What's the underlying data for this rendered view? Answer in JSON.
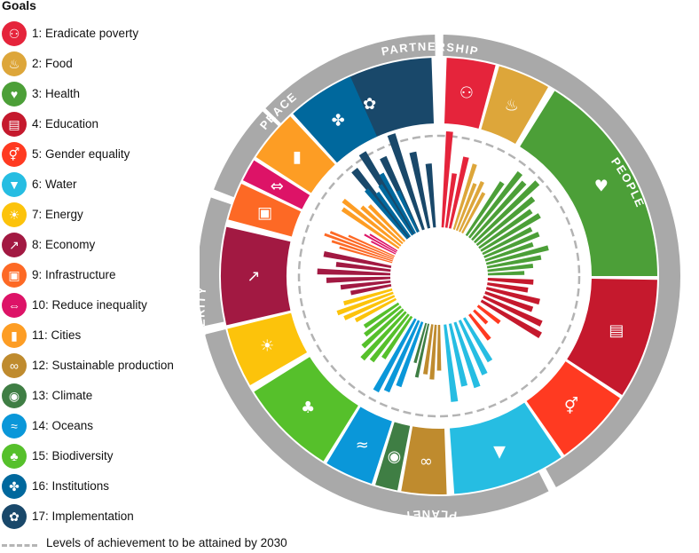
{
  "legend": {
    "title": "Goals",
    "items": [
      {
        "label": "1: Eradicate poverty",
        "color": "#E5243B",
        "icon": "people-icon"
      },
      {
        "label": "2: Food",
        "color": "#DDA63A",
        "icon": "bowl-icon"
      },
      {
        "label": "3: Health",
        "color": "#4C9F38",
        "icon": "heartbeat-icon"
      },
      {
        "label": "4: Education",
        "color": "#C5192D",
        "icon": "book-icon"
      },
      {
        "label": "5: Gender equality",
        "color": "#FF3A21",
        "icon": "gender-icon"
      },
      {
        "label": "6: Water",
        "color": "#26BDE2",
        "icon": "water-icon"
      },
      {
        "label": "7: Energy",
        "color": "#FCC30B",
        "icon": "sun-icon"
      },
      {
        "label": "8: Economy",
        "color": "#A21942",
        "icon": "growth-icon"
      },
      {
        "label": "9: Infrastructure",
        "color": "#FD6925",
        "icon": "cubes-icon"
      },
      {
        "label": "10: Reduce inequality",
        "color": "#DD1367",
        "icon": "arrows-icon"
      },
      {
        "label": "11: Cities",
        "color": "#FD9D24",
        "icon": "buildings-icon"
      },
      {
        "label": "12: Sustainable production",
        "color": "#BF8B2E",
        "icon": "infinity-icon"
      },
      {
        "label": "13: Climate",
        "color": "#3F7E44",
        "icon": "eye-icon"
      },
      {
        "label": "14: Oceans",
        "color": "#0A97D9",
        "icon": "fish-icon"
      },
      {
        "label": "15: Biodiversity",
        "color": "#56C02B",
        "icon": "tree-icon"
      },
      {
        "label": "16: Institutions",
        "color": "#00689D",
        "icon": "dove-icon"
      },
      {
        "label": "17: Implementation",
        "color": "#19486A",
        "icon": "rings-icon"
      }
    ],
    "achievement_label": "Levels of achievement to be attained by 2030"
  },
  "wheel": {
    "groups": [
      {
        "label": "PARTNERSHIP"
      },
      {
        "label": "PEOPLE"
      },
      {
        "label": "PLANET"
      },
      {
        "label": "PROSPERITY"
      },
      {
        "label": "PEACE"
      }
    ]
  },
  "chart_data": {
    "type": "bar",
    "layout": "radial",
    "target_level": 1.0,
    "series": [
      {
        "goal": 17,
        "values": [
          0.95,
          1.05,
          0.9,
          1.1,
          0.85,
          0.7
        ]
      },
      {
        "goal": 1,
        "values": [
          1.05,
          0.6,
          0.8
        ]
      },
      {
        "goal": 2,
        "values": [
          0.75,
          0.55,
          0.6,
          0.5
        ]
      },
      {
        "goal": 3,
        "values": [
          0.7,
          0.9,
          0.85,
          0.95,
          0.8,
          0.7,
          0.75,
          0.6,
          0.65,
          0.55,
          0.7,
          0.6,
          0.5,
          0.4
        ]
      },
      {
        "goal": 4,
        "values": [
          0.5,
          0.45,
          0.6,
          0.55,
          0.7,
          0.75
        ]
      },
      {
        "goal": 5,
        "values": [
          0.3,
          0.2,
          0.35
        ]
      },
      {
        "goal": 6,
        "values": [
          0.55,
          0.65,
          0.75,
          0.7,
          0.85
        ]
      },
      {
        "goal": 12,
        "values": [
          0.5,
          0.6,
          0.55
        ]
      },
      {
        "goal": 13,
        "values": [
          0.6,
          0.45
        ]
      },
      {
        "goal": 14,
        "values": [
          0.75,
          0.85,
          0.9
        ]
      },
      {
        "goal": 15,
        "values": [
          0.55,
          0.65,
          0.7,
          0.6,
          0.5,
          0.45
        ]
      },
      {
        "goal": 7,
        "values": [
          0.5,
          0.6,
          0.65,
          0.55
        ]
      },
      {
        "goal": 8,
        "values": [
          0.45,
          0.55,
          0.7,
          0.8,
          0.6,
          0.75
        ]
      },
      {
        "goal": 9,
        "values": [
          0.6,
          0.7,
          0.8,
          0.75,
          0.55
        ]
      },
      {
        "goal": 10,
        "values": [
          0.3,
          0.4,
          0.35
        ]
      },
      {
        "goal": 11,
        "values": [
          0.75,
          0.8,
          0.6,
          0.55
        ]
      },
      {
        "goal": 16,
        "values": [
          0.7,
          0.6,
          0.65,
          0.75,
          0.5
        ]
      }
    ]
  }
}
